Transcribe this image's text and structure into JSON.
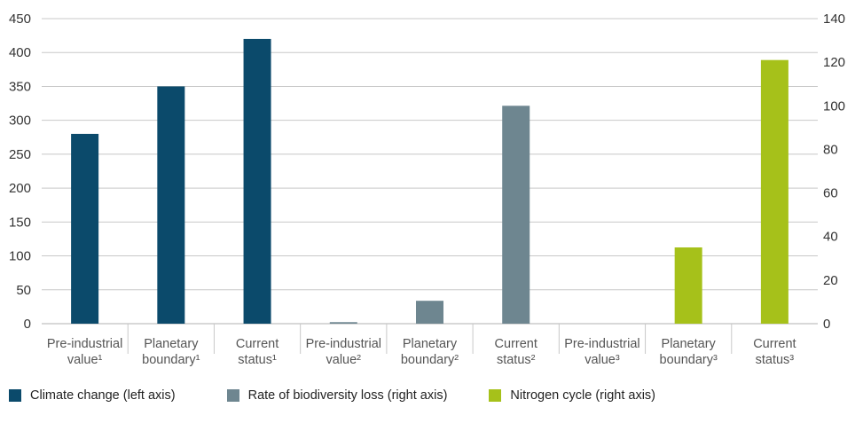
{
  "chart_data": {
    "type": "bar",
    "categories": [
      [
        "Pre-industrial",
        "value¹"
      ],
      [
        "Planetary",
        "boundary¹"
      ],
      [
        "Current",
        "status¹"
      ],
      [
        "Pre-industrial",
        "value²"
      ],
      [
        "Planetary",
        "boundary²"
      ],
      [
        "Current",
        "status²"
      ],
      [
        "Pre-industrial",
        "value³"
      ],
      [
        "Planetary",
        "boundary³"
      ],
      [
        "Current",
        "status³"
      ]
    ],
    "series": [
      {
        "name": "Climate change (left axis)",
        "axis": "left",
        "color": "#0b4a6b",
        "values": [
          280,
          350,
          420,
          null,
          null,
          null,
          null,
          null,
          null
        ]
      },
      {
        "name": "Rate of biodiversity loss (right axis)",
        "axis": "right",
        "color": "#6e8690",
        "values": [
          null,
          null,
          null,
          0.7,
          10.5,
          100,
          null,
          null,
          null
        ]
      },
      {
        "name": "Nitrogen cycle (right axis)",
        "axis": "right",
        "color": "#a6c11a",
        "values": [
          null,
          null,
          null,
          null,
          null,
          null,
          0,
          35,
          121
        ]
      }
    ],
    "left_axis": {
      "min": 0,
      "max": 450,
      "ticks": [
        0,
        50,
        100,
        150,
        200,
        250,
        300,
        350,
        400,
        450
      ]
    },
    "right_axis": {
      "min": 0,
      "max": 140,
      "ticks": [
        0,
        20,
        40,
        60,
        80,
        100,
        120,
        140
      ]
    },
    "grid": true,
    "legend_position": "bottom-left"
  }
}
